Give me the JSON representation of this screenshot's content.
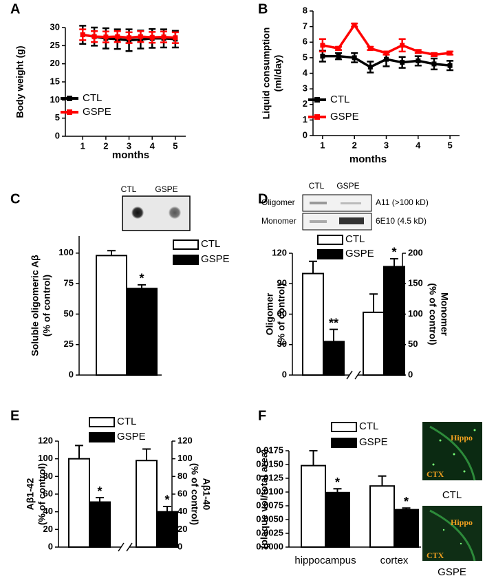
{
  "chart_data": [
    {
      "type": "line",
      "label": "A",
      "ylabel": [
        "Body weight  (g)"
      ],
      "xlabel": "months",
      "x": [
        1,
        1.5,
        2,
        2.5,
        3,
        3.5,
        4,
        4.5,
        5
      ],
      "xlim": [
        0.25,
        5.45
      ],
      "xticks": [
        1,
        2,
        3,
        4,
        5
      ],
      "ylim": [
        0,
        30
      ],
      "yticks": [
        0,
        5,
        10,
        15,
        20,
        25,
        30
      ],
      "legend": "lower left",
      "series": [
        {
          "name": "CTL",
          "color": "#000000",
          "values": [
            28,
            27.5,
            27,
            26.8,
            26.5,
            26.7,
            27,
            27,
            26.8
          ],
          "errors": [
            2.5,
            2.5,
            2.8,
            2.7,
            3,
            2.5,
            2.6,
            2.5,
            2.3
          ]
        },
        {
          "name": "GSPE",
          "color": "#ff0000",
          "values": [
            28,
            27.5,
            27.4,
            27.5,
            27.2,
            27.5,
            27.3,
            27.4,
            27.2
          ],
          "errors": [
            1.5,
            1.5,
            1.5,
            1.5,
            1.5,
            1.5,
            1.5,
            1.5,
            1.5
          ]
        }
      ]
    },
    {
      "type": "line",
      "label": "B",
      "ylabel": [
        "Liquid consumption",
        "(ml/day)"
      ],
      "xlabel": "months",
      "x": [
        1,
        1.5,
        2,
        2.5,
        3,
        3.5,
        4,
        4.5,
        5
      ],
      "xlim": [
        0.7,
        5.3
      ],
      "xticks": [
        1,
        2,
        3,
        4,
        5
      ],
      "ylim": [
        0,
        8
      ],
      "yticks": [
        0,
        1,
        2,
        3,
        4,
        5,
        6,
        7,
        8
      ],
      "legend": "lower left",
      "series": [
        {
          "name": "CTL",
          "color": "#000000",
          "values": [
            5.1,
            5.1,
            5.0,
            4.4,
            4.9,
            4.7,
            4.8,
            4.6,
            4.5
          ],
          "errors": [
            0.35,
            0.2,
            0.3,
            0.35,
            0.45,
            0.35,
            0.3,
            0.35,
            0.3
          ]
        },
        {
          "name": "GSPE",
          "color": "#ff0000",
          "values": [
            5.8,
            5.6,
            7.1,
            5.6,
            5.3,
            5.8,
            5.4,
            5.2,
            5.3
          ],
          "errors": [
            0.4,
            0.1,
            0.1,
            0.1,
            0.1,
            0.4,
            0.1,
            0.1,
            0.1
          ]
        }
      ]
    },
    {
      "type": "bar",
      "label": "C",
      "ylabel": [
        "Soluble oligomeric Aβ",
        "(% of control)"
      ],
      "ylim": [
        0,
        114
      ],
      "yticks": [
        0,
        25,
        50,
        75,
        100
      ],
      "legend": "upper right",
      "blot_labels": [
        "CTL",
        "GSPE"
      ],
      "series": [
        {
          "name": "CTL",
          "color": "#ffffff",
          "values": [
            98
          ],
          "errors": [
            4
          ]
        },
        {
          "name": "GSPE",
          "color": "#000000",
          "values": [
            71
          ],
          "errors": [
            3
          ]
        }
      ],
      "annotations": [
        {
          "text": "*",
          "series": 1,
          "index": 0
        }
      ]
    },
    {
      "type": "bar",
      "label": "D",
      "ylabel": [
        "Oligomer",
        "(% of control)"
      ],
      "y2label": [
        "Monomer",
        "(% of control)"
      ],
      "ylim": [
        0,
        120
      ],
      "yticks": [
        0,
        30,
        60,
        90,
        120
      ],
      "y2lim": [
        0,
        200
      ],
      "y2ticks": [
        0,
        50,
        100,
        150,
        200
      ],
      "group_axes": [
        "y",
        "y2"
      ],
      "legend": "upper center",
      "blot_labels": [
        "CTL",
        "GSPE",
        "Oligomer",
        "Monomer",
        "A11  (>100 kD)",
        "6E10 (4.5 kD)"
      ],
      "series": [
        {
          "name": "CTL",
          "color": "#ffffff",
          "values": [
            100,
            103
          ],
          "errors": [
            12,
            30
          ]
        },
        {
          "name": "GSPE",
          "color": "#000000",
          "values": [
            33,
            178
          ],
          "errors": [
            12,
            13
          ]
        }
      ],
      "annotations": [
        {
          "text": "**",
          "series": 1,
          "index": 0
        },
        {
          "text": "*",
          "series": 1,
          "index": 1
        }
      ]
    },
    {
      "type": "bar",
      "label": "E",
      "ylabel": [
        "Aβ1-42",
        "(% of control)"
      ],
      "y2label": [
        "Aβ1-40",
        "(% of control)"
      ],
      "ylim": [
        0,
        120
      ],
      "yticks": [
        0,
        20,
        40,
        60,
        80,
        100,
        120
      ],
      "y2lim": [
        0,
        120
      ],
      "y2ticks": [
        0,
        20,
        40,
        60,
        80,
        100,
        120
      ],
      "group_axes": [
        "y",
        "y2"
      ],
      "legend": "upper center",
      "series": [
        {
          "name": "CTL",
          "color": "#ffffff",
          "values": [
            100,
            98
          ],
          "errors": [
            15,
            13
          ]
        },
        {
          "name": "GSPE",
          "color": "#000000",
          "values": [
            51,
            40
          ],
          "errors": [
            5,
            6
          ]
        }
      ],
      "annotations": [
        {
          "text": "*",
          "series": 1,
          "index": 0
        },
        {
          "text": "*",
          "series": 1,
          "index": 1
        }
      ]
    },
    {
      "type": "bar",
      "label": "F",
      "ylabel": [
        "(plaque vol/total area)"
      ],
      "categories": [
        "hippocampus",
        "cortex"
      ],
      "ylim": [
        0,
        0.0175
      ],
      "yticks": [
        {
          "value": 0,
          "label": "0.0000"
        },
        {
          "value": 0.0025,
          "label": "0.0025"
        },
        {
          "value": 0.005,
          "label": "0.0050"
        },
        {
          "value": 0.0075,
          "label": "0.0075"
        },
        {
          "value": 0.01,
          "label": "0.0100"
        },
        {
          "value": 0.0125,
          "label": "0.0125"
        },
        {
          "value": 0.015,
          "label": "0.0150"
        },
        {
          "value": 0.0175,
          "label": "0.0175"
        }
      ],
      "legend": "upper center",
      "image_labels": [
        "Hippo",
        "CTX",
        "CTL",
        "Hippo",
        "CTX",
        "GSPE"
      ],
      "series": [
        {
          "name": "CTL",
          "color": "#ffffff",
          "values": [
            0.0148,
            0.0111
          ],
          "errors": [
            0.0027,
            0.0018
          ]
        },
        {
          "name": "GSPE",
          "color": "#000000",
          "values": [
            0.0099,
            0.0068
          ],
          "errors": [
            0.0007,
            0.0003
          ]
        }
      ],
      "annotations": [
        {
          "text": "*",
          "series": 1,
          "index": 0
        },
        {
          "text": "*",
          "series": 1,
          "index": 1
        }
      ]
    }
  ]
}
